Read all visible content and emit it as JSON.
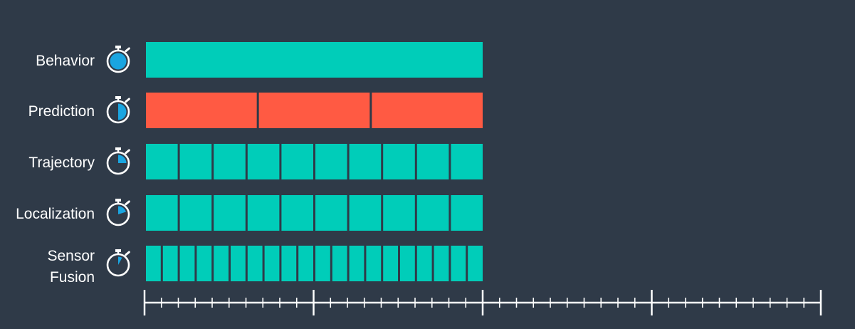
{
  "colors": {
    "background": "#2f3a48",
    "teal": "#00cdb9",
    "red": "#ff5a43",
    "icon_fill": "#1aa5e0",
    "icon_stroke": "#ffffff",
    "axis": "#ffffff"
  },
  "rows": [
    {
      "label_lines": [
        "Behavior"
      ],
      "segments": 1,
      "color": "teal",
      "icon": "stopwatch-icon",
      "icon_fraction": 1.0
    },
    {
      "label_lines": [
        "Prediction"
      ],
      "segments": 3,
      "color": "red",
      "icon": "stopwatch-icon",
      "icon_fraction": 0.5
    },
    {
      "label_lines": [
        "Trajectory"
      ],
      "segments": 10,
      "color": "teal",
      "icon": "stopwatch-icon",
      "icon_fraction": 0.25
    },
    {
      "label_lines": [
        "Localization"
      ],
      "segments": 10,
      "color": "teal",
      "icon": "stopwatch-icon",
      "icon_fraction": 0.2
    },
    {
      "label_lines": [
        "Sensor",
        "Fusion"
      ],
      "segments": 20,
      "color": "teal",
      "icon": "stopwatch-icon",
      "icon_fraction": 0.08
    }
  ],
  "axis": {
    "major_ticks": 5,
    "minor_per_major": 10
  }
}
